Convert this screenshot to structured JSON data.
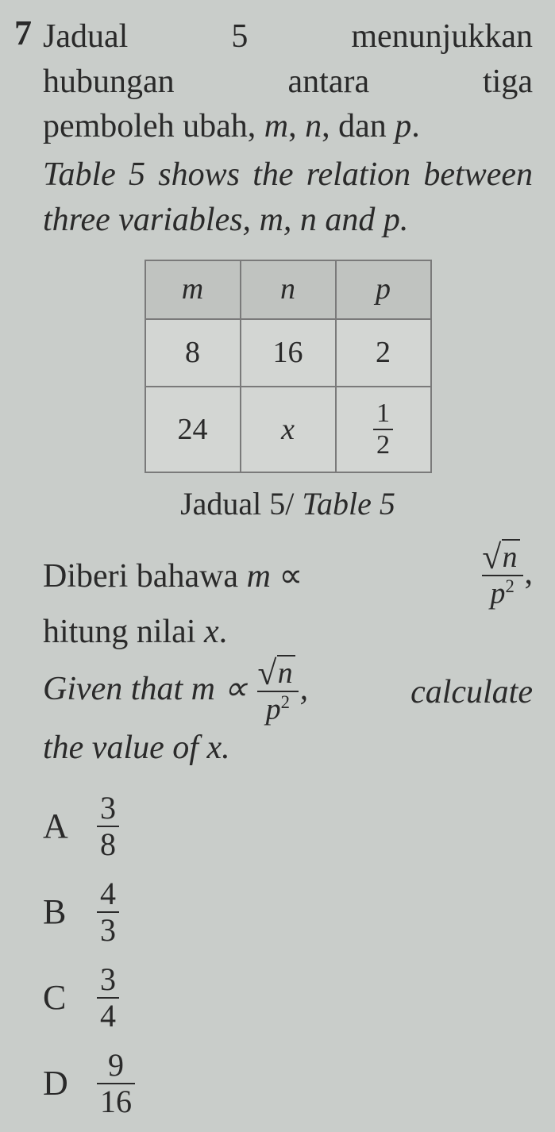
{
  "question_number": "7",
  "para_ms_words": [
    "Jadual",
    "5",
    "menunjukkan"
  ],
  "para_ms_line2a": "hubungan",
  "para_ms_line2b": "antara",
  "para_ms_line2c": "tiga",
  "para_ms_line3": "pemboleh ubah, ",
  "para_ms_vars_tail": ", dan ",
  "var_m": "m",
  "var_n": "n",
  "var_p": "p",
  "period": ".",
  "para_en": "Table 5 shows the relation between three variables, ",
  "para_en_mid": ", ",
  "para_en_tail": " and ",
  "table": {
    "headers": [
      "m",
      "n",
      "p"
    ],
    "row1": [
      "8",
      "16",
      "2"
    ],
    "row2_c1": "24",
    "row2_c2": "x",
    "row2_frac_num": "1",
    "row2_frac_den": "2"
  },
  "caption_ms": "Jadual 5",
  "caption_sep": "/ ",
  "caption_en": "Table 5",
  "stem_ms_l1a": "Diberi bahawa ",
  "stem_ms_prop": " ∝ ",
  "stem_ms_l2": "hitung nilai ",
  "var_x": "x",
  "comma": ",",
  "stem_en_l1a": "Given that ",
  "stem_en_l1b": " calculate",
  "stem_en_l2": "the value of ",
  "formula": {
    "radicand": "n",
    "den_base": "p",
    "den_exp": "2"
  },
  "options": {
    "A": {
      "num": "3",
      "den": "8"
    },
    "B": {
      "num": "4",
      "den": "3"
    },
    "C": {
      "num": "3",
      "den": "4"
    },
    "D": {
      "num": "9",
      "den": "16"
    }
  },
  "letters": {
    "A": "A",
    "B": "B",
    "C": "C",
    "D": "D"
  },
  "colors": {
    "background": "#c9cdca",
    "text": "#2a2a2a",
    "table_border": "#7a7a7a",
    "table_header_bg": "#c0c3c0",
    "table_cell_bg": "#d3d6d3"
  },
  "typography": {
    "body_fontsize_pt": 32,
    "qnum_fontsize_pt": 33,
    "table_fontsize_pt": 28,
    "option_fontsize_pt": 33,
    "font_family": "Georgia serif"
  }
}
